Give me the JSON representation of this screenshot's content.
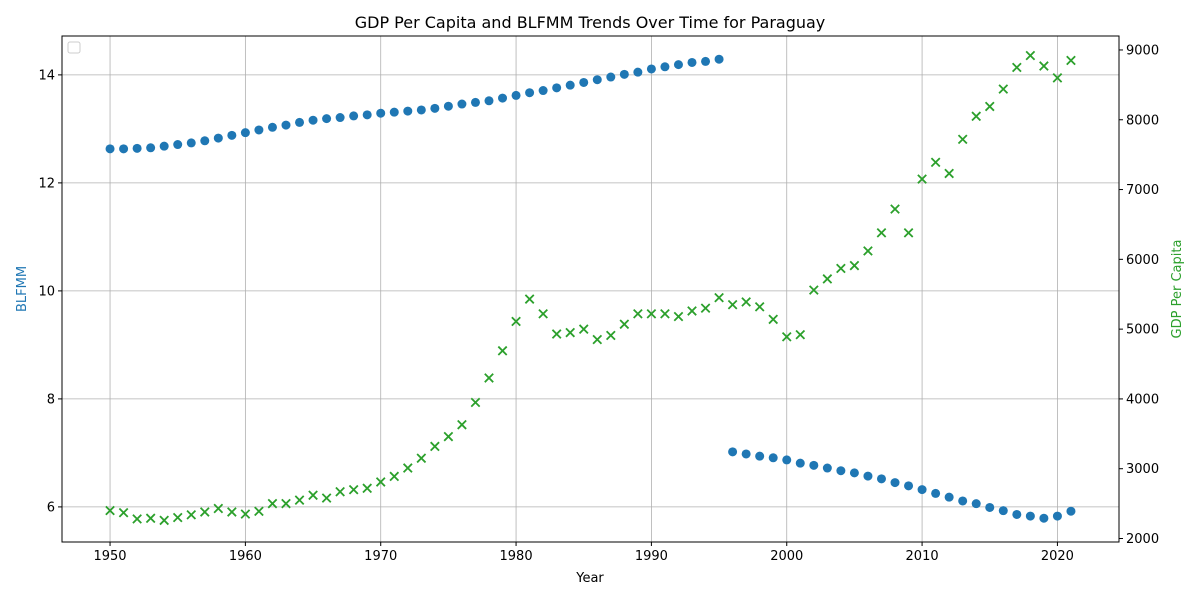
{
  "chart_data": {
    "type": "scatter",
    "title": "GDP Per Capita and BLFMM Trends Over Time for Paraguay",
    "xlabel": "Year",
    "ylabel_left": "BLFMM",
    "ylabel_right": "GDP Per Capita",
    "xlim": [
      1946.45,
      2024.55
    ],
    "ylim_left": [
      5.35,
      14.72
    ],
    "ylim_right": [
      1950,
      9200
    ],
    "x_ticks": [
      1950,
      1960,
      1970,
      1980,
      1990,
      2000,
      2010,
      2020
    ],
    "y_ticks_left": [
      6,
      8,
      10,
      12,
      14
    ],
    "y_ticks_right": [
      2000,
      3000,
      4000,
      5000,
      6000,
      7000,
      8000,
      9000
    ],
    "grid": true,
    "legend_position": "upper-left",
    "colors": {
      "blfmm": "#1f77b4",
      "gdp": "#2ca02c"
    },
    "series": [
      {
        "axis": "left",
        "marker": "circle",
        "x": [
          1950,
          1951,
          1952,
          1953,
          1954,
          1955,
          1956,
          1957,
          1958,
          1959,
          1960,
          1961,
          1962,
          1963,
          1964,
          1965,
          1966,
          1967,
          1968,
          1969,
          1970,
          1971,
          1972,
          1973,
          1974,
          1975,
          1976,
          1977,
          1978,
          1979,
          1980,
          1981,
          1982,
          1983,
          1984,
          1985,
          1986,
          1987,
          1988,
          1989,
          1990,
          1991,
          1992,
          1993,
          1994,
          1995,
          1996,
          1997,
          1998,
          1999,
          2000,
          2001,
          2002,
          2003,
          2004,
          2005,
          2006,
          2007,
          2008,
          2009,
          2010,
          2011,
          2012,
          2013,
          2014,
          2015,
          2016,
          2017,
          2018,
          2019,
          2020,
          2021
        ],
        "y": [
          12.63,
          12.63,
          12.64,
          12.65,
          12.68,
          12.71,
          12.74,
          12.78,
          12.83,
          12.88,
          12.93,
          12.98,
          13.03,
          13.07,
          13.12,
          13.16,
          13.19,
          13.21,
          13.24,
          13.26,
          13.29,
          13.31,
          13.33,
          13.35,
          13.38,
          13.42,
          13.46,
          13.49,
          13.52,
          13.57,
          13.62,
          13.67,
          13.71,
          13.76,
          13.81,
          13.86,
          13.91,
          13.96,
          14.01,
          14.05,
          14.11,
          14.15,
          14.19,
          14.23,
          14.25,
          14.29,
          7.02,
          6.98,
          6.94,
          6.91,
          6.87,
          6.81,
          6.77,
          6.72,
          6.67,
          6.63,
          6.57,
          6.52,
          6.45,
          6.39,
          6.32,
          6.25,
          6.18,
          6.11,
          6.06,
          5.99,
          5.93,
          5.86,
          5.83,
          5.79,
          5.83,
          5.92
        ]
      },
      {
        "axis": "right",
        "marker": "x",
        "x": [
          1950,
          1951,
          1952,
          1953,
          1954,
          1955,
          1956,
          1957,
          1958,
          1959,
          1960,
          1961,
          1962,
          1963,
          1964,
          1965,
          1966,
          1967,
          1968,
          1969,
          1970,
          1971,
          1972,
          1973,
          1974,
          1975,
          1976,
          1977,
          1978,
          1979,
          1980,
          1981,
          1982,
          1983,
          1984,
          1985,
          1986,
          1987,
          1988,
          1989,
          1990,
          1991,
          1992,
          1993,
          1994,
          1995,
          1996,
          1997,
          1998,
          1999,
          2000,
          2001,
          2002,
          2003,
          2004,
          2005,
          2006,
          2007,
          2008,
          2009,
          2010,
          2011,
          2012,
          2013,
          2014,
          2015,
          2016,
          2017,
          2018,
          2019,
          2020,
          2021
        ],
        "y": [
          2400,
          2370,
          2280,
          2290,
          2260,
          2300,
          2340,
          2380,
          2430,
          2380,
          2350,
          2390,
          2500,
          2500,
          2550,
          2620,
          2580,
          2670,
          2700,
          2720,
          2810,
          2890,
          3010,
          3150,
          3320,
          3460,
          3630,
          3950,
          4300,
          4690,
          5110,
          5430,
          5220,
          4930,
          4950,
          5000,
          4850,
          4910,
          5070,
          5220,
          5220,
          5220,
          5180,
          5260,
          5300,
          5450,
          5350,
          5390,
          5320,
          5140,
          4890,
          4920,
          5560,
          5720,
          5870,
          5910,
          6120,
          6380,
          6720,
          6380,
          7150,
          7390,
          7230,
          7720,
          8050,
          8190,
          8440,
          8750,
          8920,
          8770,
          8600,
          8850
        ]
      }
    ]
  }
}
